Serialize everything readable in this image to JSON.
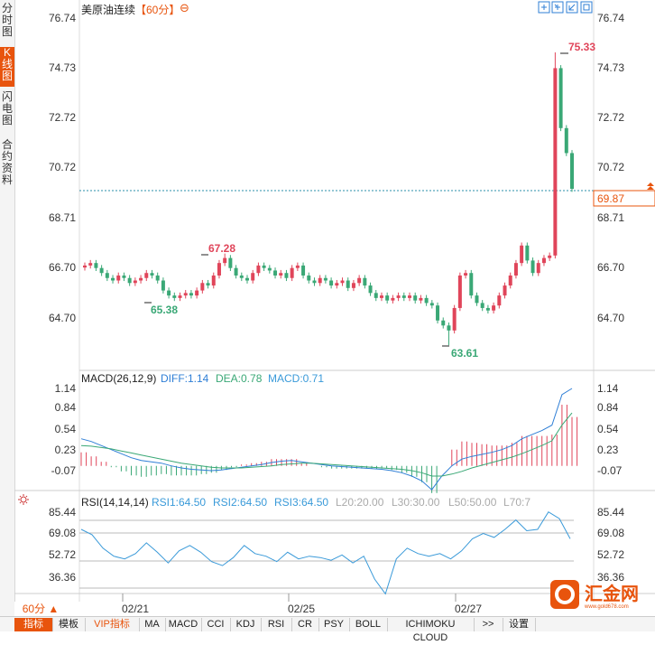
{
  "sidebar": {
    "tabs": [
      {
        "label": "分\n时\n图",
        "active": false
      },
      {
        "label": "K\n线\n图",
        "active": true
      },
      {
        "label": "闪\n电\n图",
        "active": false
      },
      {
        "label": "合\n约\n资\n料",
        "active": false
      }
    ]
  },
  "header": {
    "title": "美原油连续",
    "period": "【60分】",
    "zoom_icon": "zoom-out-icon",
    "toolbar_icons": [
      "fit-icon",
      "expand-icon",
      "restore-icon",
      "fullscreen-icon"
    ]
  },
  "main": {
    "y_ticks": [
      "76.74",
      "74.73",
      "72.72",
      "70.72",
      "68.71",
      "66.70",
      "64.70"
    ],
    "current_price": "69.87",
    "markers": {
      "high": "75.33",
      "low": "63.61",
      "local_high": "67.28",
      "local_low": "65.38"
    }
  },
  "macd": {
    "label": "MACD(26,12,9)",
    "diff": "DIFF:1.14",
    "dea": "DEA:0.78",
    "macd": "MACD:0.71",
    "y_ticks": [
      "1.14",
      "0.84",
      "0.54",
      "0.23",
      "-0.07"
    ]
  },
  "rsi": {
    "label": "RSI(14,14,14)",
    "rsi1": "RSI1:64.50",
    "rsi2": "RSI2:64.50",
    "rsi3": "RSI3:64.50",
    "l20": "L20:20.00",
    "l30": "L30:30.00",
    "l50": "L50:50.00",
    "l70": "L70:7",
    "y_ticks": [
      "85.44",
      "69.08",
      "52.72",
      "36.36"
    ]
  },
  "x_axis": {
    "labels": [
      "02/21",
      "02/25",
      "02/27"
    ]
  },
  "period_button": "60分 ▲",
  "bottom_toolbar": {
    "items": [
      "指标",
      "模板",
      "VIP指标",
      "MA",
      "MACD",
      "CCI",
      "KDJ",
      "RSI",
      "CR",
      "PSY",
      "BOLL",
      "ICHIMOKU CLOUD",
      ">>",
      "设置"
    ]
  },
  "watermark": {
    "brand": "汇金网",
    "url": "www.gold678.com"
  },
  "colors": {
    "up": "#e0455a",
    "down": "#3aa876",
    "accent": "#e8540d",
    "diff_line": "#2f7fd6",
    "dea_line": "#3aa876",
    "rsi_line": "#3a9ad9"
  },
  "chart_data": {
    "type": "candlestick",
    "ylim": [
      63.2,
      76.74
    ],
    "markers": {
      "high": 75.33,
      "low": 63.61,
      "local_high": 67.28,
      "local_low": 65.38
    },
    "closes": [
      66.8,
      66.9,
      66.7,
      66.5,
      66.3,
      66.2,
      66.4,
      66.3,
      66.1,
      66.2,
      66.3,
      66.5,
      66.4,
      66.2,
      65.8,
      65.6,
      65.5,
      65.6,
      65.7,
      65.6,
      65.8,
      66.1,
      66.0,
      66.4,
      66.9,
      67.1,
      66.7,
      66.4,
      66.3,
      66.2,
      66.5,
      66.8,
      66.7,
      66.6,
      66.4,
      66.5,
      66.3,
      66.7,
      66.8,
      66.4,
      66.2,
      66.1,
      66.3,
      66.2,
      66.0,
      66.1,
      66.2,
      65.9,
      66.1,
      66.3,
      66.0,
      65.7,
      65.5,
      65.6,
      65.4,
      65.5,
      65.6,
      65.5,
      65.6,
      65.4,
      65.5,
      65.3,
      65.2,
      64.6,
      64.4,
      64.2,
      65.1,
      66.4,
      66.5,
      65.6,
      65.3,
      65.1,
      65.0,
      65.2,
      65.6,
      66.0,
      66.4,
      66.9,
      67.6,
      67.0,
      66.5,
      66.9,
      67.1,
      67.2,
      74.7,
      72.3,
      71.3,
      69.87
    ],
    "diff": [
      0.4,
      0.36,
      0.3,
      0.24,
      0.18,
      0.12,
      0.08,
      0.06,
      0.04,
      0.0,
      -0.03,
      -0.05,
      -0.06,
      -0.07,
      -0.06,
      -0.04,
      -0.02,
      0.0,
      0.02,
      0.05,
      0.07,
      0.08,
      0.06,
      0.04,
      0.02,
      0.0,
      -0.01,
      -0.02,
      -0.03,
      -0.04,
      -0.05,
      -0.07,
      -0.1,
      -0.15,
      -0.22,
      -0.35,
      -0.15,
      0.0,
      0.1,
      0.14,
      0.17,
      0.2,
      0.24,
      0.3,
      0.4,
      0.46,
      0.52,
      0.6,
      1.05,
      1.14
    ],
    "dea": [
      0.3,
      0.29,
      0.27,
      0.25,
      0.22,
      0.19,
      0.16,
      0.13,
      0.1,
      0.07,
      0.04,
      0.02,
      0.0,
      -0.02,
      -0.03,
      -0.03,
      -0.03,
      -0.02,
      -0.01,
      0.0,
      0.02,
      0.03,
      0.04,
      0.04,
      0.03,
      0.02,
      0.01,
      0.0,
      -0.01,
      -0.02,
      -0.03,
      -0.04,
      -0.05,
      -0.07,
      -0.1,
      -0.15,
      -0.15,
      -0.12,
      -0.08,
      -0.03,
      0.01,
      0.05,
      0.09,
      0.13,
      0.18,
      0.24,
      0.3,
      0.37,
      0.6,
      0.78
    ],
    "rsi": [
      72,
      68,
      58,
      52,
      50,
      54,
      62,
      55,
      47,
      56,
      60,
      55,
      48,
      45,
      51,
      60,
      54,
      52,
      48,
      55,
      50,
      52,
      51,
      49,
      53,
      47,
      52,
      35,
      24,
      50,
      58,
      54,
      52,
      54,
      50,
      56,
      65,
      69,
      66,
      72,
      79,
      71,
      72,
      85,
      80,
      65
    ]
  }
}
